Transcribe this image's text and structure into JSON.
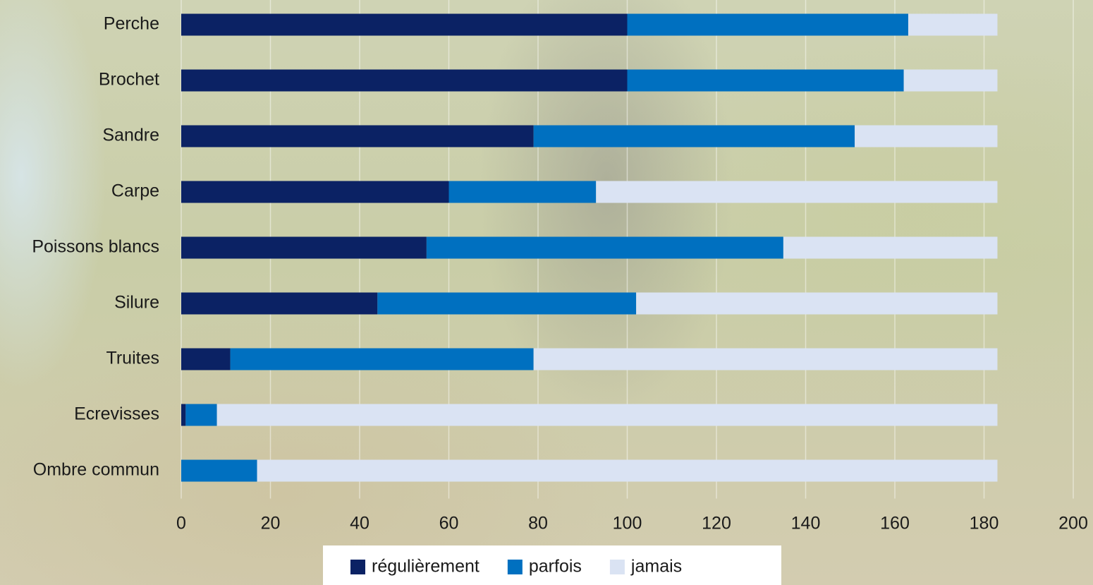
{
  "chart_data": {
    "type": "stacked-barh",
    "categories": [
      "Perche",
      "Brochet",
      "Sandre",
      "Carpe",
      "Poissons blancs",
      "Silure",
      "Truites",
      "Ecrevisses",
      "Ombre commun"
    ],
    "series": [
      {
        "name": "régulièrement",
        "color": "#0b2264",
        "values": [
          100,
          100,
          79,
          60,
          55,
          44,
          11,
          1,
          0
        ]
      },
      {
        "name": "parfois",
        "color": "#0070c0",
        "values": [
          63,
          62,
          72,
          33,
          80,
          58,
          68,
          7,
          17
        ]
      },
      {
        "name": "jamais",
        "color": "#dae3f3",
        "values": [
          20,
          21,
          32,
          90,
          48,
          81,
          104,
          175,
          166
        ]
      }
    ],
    "xlim": [
      0,
      200
    ],
    "xticks": [
      0,
      20,
      40,
      60,
      80,
      100,
      120,
      140,
      160,
      180,
      200
    ],
    "grid": true,
    "legend": "bottom"
  }
}
